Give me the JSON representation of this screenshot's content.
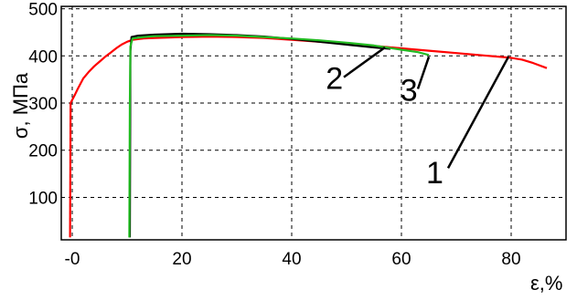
{
  "chart_data": {
    "type": "line",
    "xlabel": "ε,%",
    "ylabel": "σ, МПа",
    "xlim": [
      -2,
      90
    ],
    "ylim": [
      10,
      505
    ],
    "xticks": [
      0,
      20,
      40,
      60,
      80
    ],
    "xtick_labels": [
      "-0",
      "20",
      "40",
      "60",
      "80"
    ],
    "yticks": [
      100,
      200,
      300,
      400,
      500
    ],
    "ytick_labels": [
      "100",
      "200",
      "300",
      "400",
      "500"
    ],
    "grid": true,
    "grid_style": "dashed",
    "series": [
      {
        "name": "1",
        "color": "#ff0000",
        "points": [
          [
            -0.4,
            15
          ],
          [
            -0.3,
            300
          ],
          [
            0.5,
            318
          ],
          [
            1,
            330
          ],
          [
            2,
            352
          ],
          [
            3,
            366
          ],
          [
            4,
            378
          ],
          [
            5,
            388
          ],
          [
            6,
            398
          ],
          [
            7,
            407
          ],
          [
            8,
            416
          ],
          [
            9,
            424
          ],
          [
            10,
            430
          ],
          [
            11,
            434
          ],
          [
            13,
            437
          ],
          [
            15,
            438
          ],
          [
            20,
            440
          ],
          [
            25,
            441
          ],
          [
            30,
            440
          ],
          [
            35,
            438
          ],
          [
            40,
            434
          ],
          [
            45,
            430
          ],
          [
            50,
            426
          ],
          [
            55,
            421
          ],
          [
            60,
            416
          ],
          [
            65,
            411
          ],
          [
            70,
            406
          ],
          [
            75,
            401
          ],
          [
            80,
            396
          ],
          [
            82,
            392
          ],
          [
            84,
            385
          ],
          [
            86.5,
            374
          ]
        ]
      },
      {
        "name": "2",
        "color": "#000000",
        "points": [
          [
            10.5,
            15
          ],
          [
            10.6,
            410
          ],
          [
            10.8,
            440
          ],
          [
            12,
            443
          ],
          [
            15,
            445
          ],
          [
            20,
            447
          ],
          [
            25,
            446
          ],
          [
            30,
            444
          ],
          [
            35,
            441
          ],
          [
            40,
            436
          ],
          [
            45,
            430
          ],
          [
            50,
            424
          ],
          [
            55,
            418
          ],
          [
            58,
            415
          ]
        ]
      },
      {
        "name": "3",
        "color": "#22bb22",
        "points": [
          [
            10.4,
            15
          ],
          [
            10.5,
            300
          ],
          [
            10.6,
            420
          ],
          [
            11,
            437
          ],
          [
            13,
            440
          ],
          [
            15,
            442
          ],
          [
            20,
            443
          ],
          [
            25,
            444
          ],
          [
            30,
            443
          ],
          [
            35,
            440
          ],
          [
            40,
            437
          ],
          [
            45,
            433
          ],
          [
            50,
            428
          ],
          [
            55,
            422
          ],
          [
            60,
            413
          ],
          [
            63,
            408
          ],
          [
            65,
            402
          ]
        ]
      }
    ],
    "annotations": [
      {
        "label": "1",
        "text_x": 64.5,
        "text_y": 130,
        "line": [
          [
            68.5,
            162
          ],
          [
            79.5,
            398
          ]
        ]
      },
      {
        "label": "2",
        "text_x": 46.2,
        "text_y": 330,
        "line": [
          [
            49.5,
            355
          ],
          [
            57,
            418
          ]
        ]
      },
      {
        "label": "3",
        "text_x": 59.8,
        "text_y": 305,
        "line": [
          [
            63,
            330
          ],
          [
            65,
            398
          ]
        ]
      }
    ]
  }
}
